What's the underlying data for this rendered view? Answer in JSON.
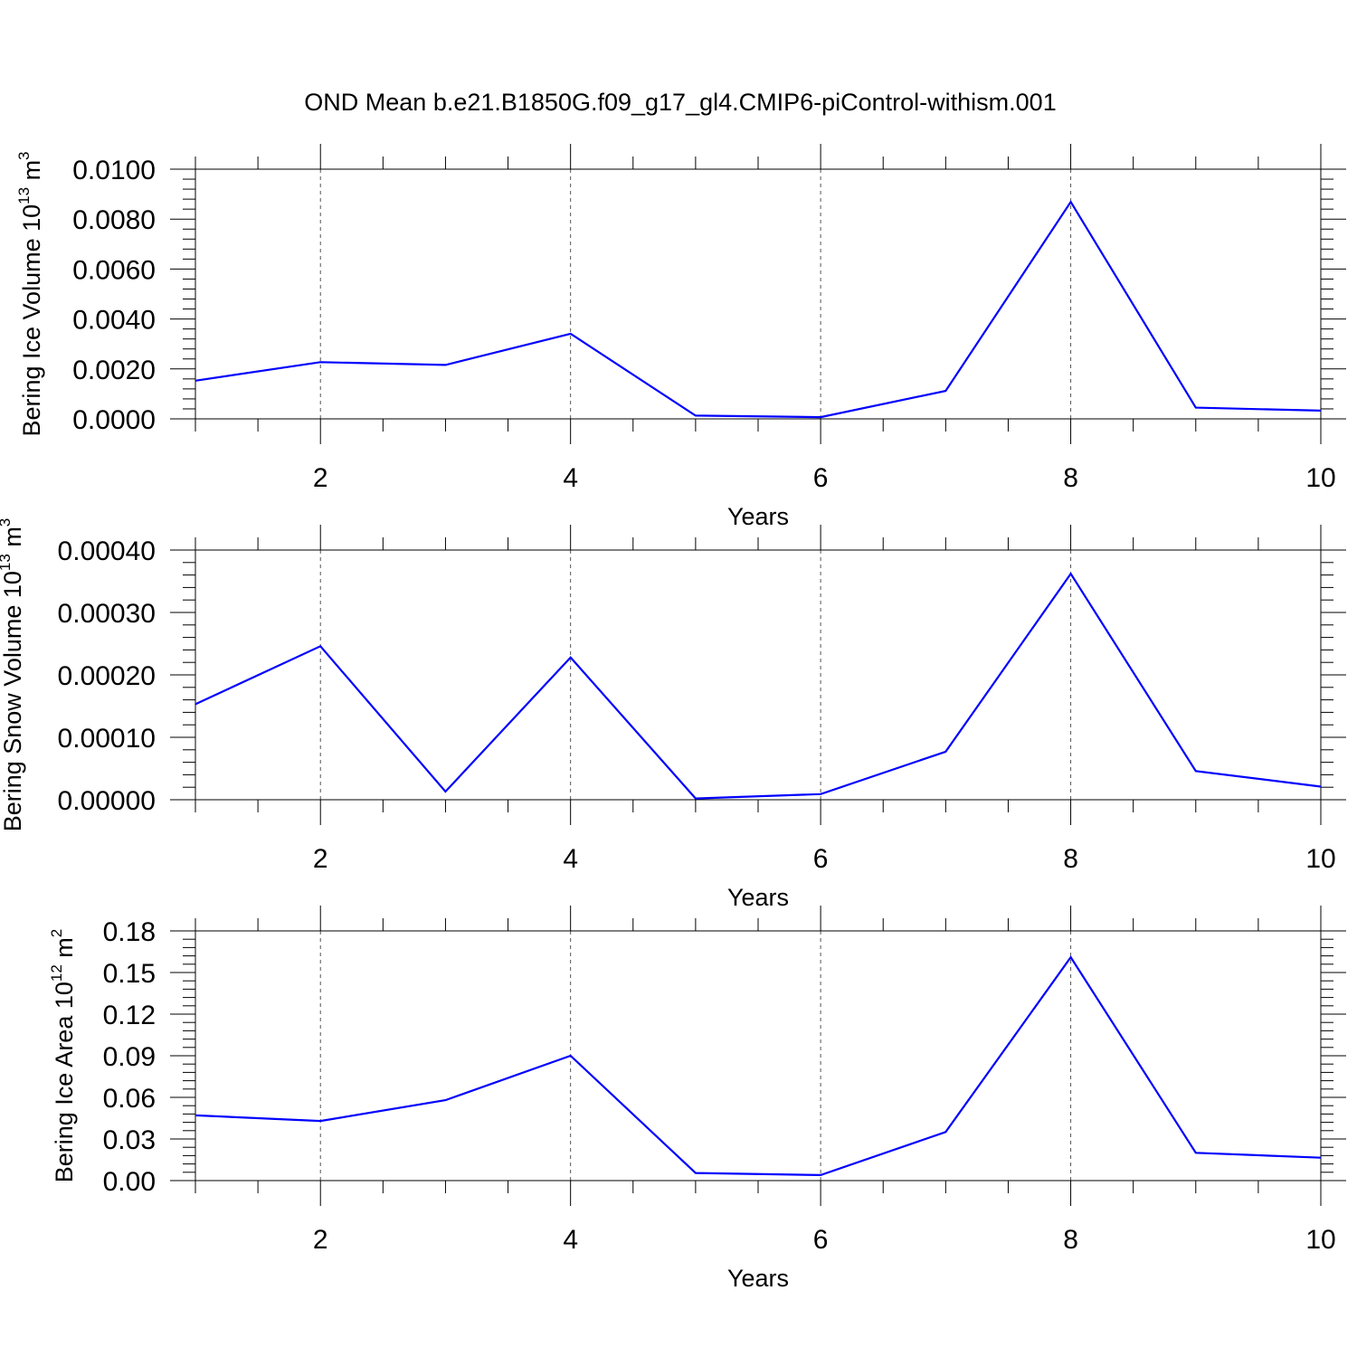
{
  "title": "OND Mean b.e21.B1850G.f09_g17_gl4.CMIP6-piControl-withism.001",
  "colors": {
    "series": "#0000ff",
    "axes": "#000000",
    "grid": "#555555"
  },
  "chart_data": [
    {
      "type": "line",
      "xlabel": "Years",
      "ylabel": {
        "text": "Bering Ice Volume 10",
        "exp": "13",
        "unit": " m",
        "unit_exp": "3"
      },
      "xlim": [
        1,
        10
      ],
      "ylim": [
        0,
        0.01
      ],
      "xticks": [
        2,
        4,
        6,
        8,
        10
      ],
      "ytick_labels": [
        "0.0000",
        "0.0020",
        "0.0040",
        "0.0060",
        "0.0080",
        "0.0100"
      ],
      "grid": "vertical dashed at major x ticks",
      "x": [
        1,
        2,
        3,
        4,
        5,
        6,
        7,
        8,
        9,
        10
      ],
      "values": [
        0.00153,
        0.00227,
        0.00216,
        0.00341,
        0.00013,
        7e-05,
        0.00112,
        0.00869,
        0.00045,
        0.00033
      ]
    },
    {
      "type": "line",
      "xlabel": "Years",
      "ylabel": {
        "text": "Bering Snow Volume 10",
        "exp": "13",
        "unit": " m",
        "unit_exp": "3"
      },
      "xlim": [
        1,
        10
      ],
      "ylim": [
        0,
        0.0004
      ],
      "xticks": [
        2,
        4,
        6,
        8,
        10
      ],
      "ytick_labels": [
        "0.00000",
        "0.00010",
        "0.00020",
        "0.00030",
        "0.00040"
      ],
      "grid": "vertical dashed at major x ticks",
      "x": [
        1,
        2,
        3,
        4,
        5,
        6,
        7,
        8,
        9,
        10
      ],
      "values": [
        0.000153,
        0.000246,
        1.3e-05,
        0.000228,
        2e-06,
        9e-06,
        7.7e-05,
        0.000362,
        4.6e-05,
        2.1e-05
      ]
    },
    {
      "type": "line",
      "xlabel": "Years",
      "ylabel": {
        "text": "Bering Ice Area 10",
        "exp": "12",
        "unit": " m",
        "unit_exp": "2"
      },
      "xlim": [
        1,
        10
      ],
      "ylim": [
        0,
        0.18
      ],
      "xticks": [
        2,
        4,
        6,
        8,
        10
      ],
      "ytick_labels": [
        "0.00",
        "0.03",
        "0.06",
        "0.09",
        "0.12",
        "0.15",
        "0.18"
      ],
      "grid": "vertical dashed at major x ticks",
      "x": [
        1,
        2,
        3,
        4,
        5,
        6,
        7,
        8,
        9,
        10
      ],
      "values": [
        0.047,
        0.043,
        0.058,
        0.09,
        0.0055,
        0.004,
        0.035,
        0.161,
        0.02,
        0.0165
      ]
    }
  ]
}
